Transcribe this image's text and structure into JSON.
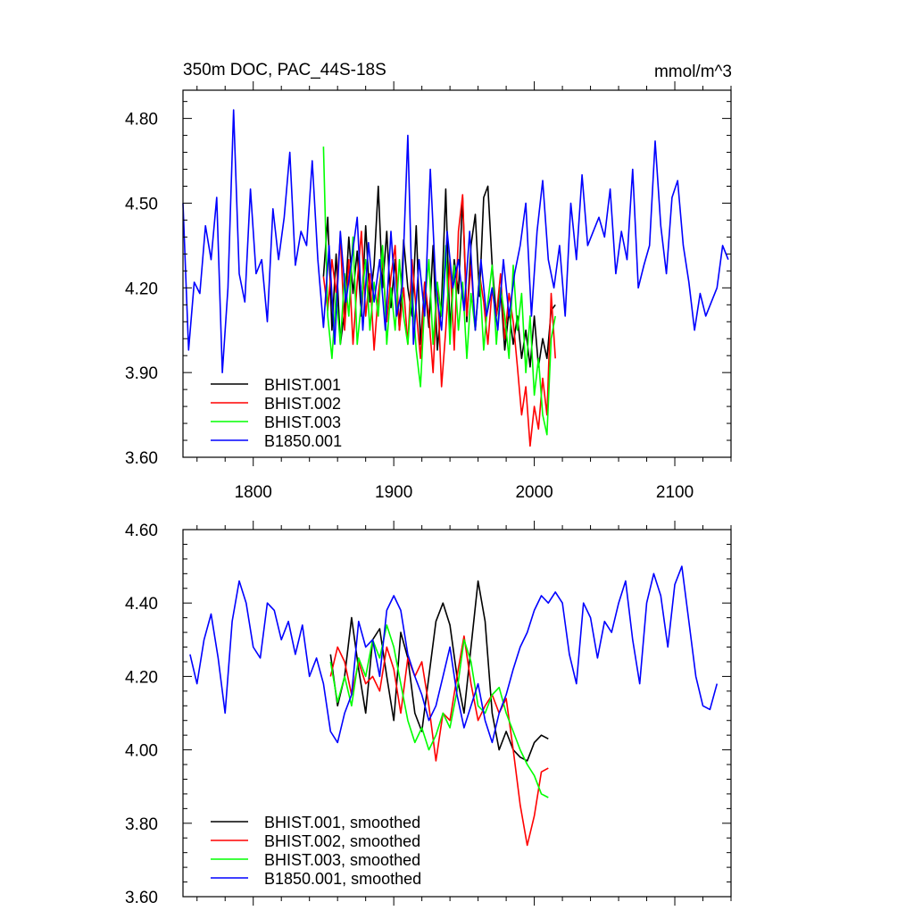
{
  "chart_data": [
    {
      "type": "line",
      "title": "350m DOC, PAC_44S-18S",
      "units_label": "mmol/m^3",
      "xlim": [
        1750,
        2140
      ],
      "ylim": [
        3.6,
        4.9
      ],
      "xticks": [
        1800,
        1900,
        2000,
        2100
      ],
      "xtick_labels": [
        "1800",
        "1900",
        "2000",
        "2100"
      ],
      "yticks": [
        3.6,
        3.9,
        4.2,
        4.5,
        4.8
      ],
      "ytick_labels": [
        "3.60",
        "3.90",
        "4.20",
        "4.50",
        "4.80"
      ],
      "legend_position": "bottom-left",
      "series": [
        {
          "name": "BHIST.001",
          "color": "#000000",
          "x": [
            1850,
            1853,
            1856,
            1859,
            1862,
            1865,
            1868,
            1871,
            1874,
            1877,
            1880,
            1883,
            1886,
            1889,
            1892,
            1895,
            1898,
            1901,
            1904,
            1907,
            1910,
            1913,
            1916,
            1919,
            1922,
            1925,
            1928,
            1931,
            1934,
            1937,
            1940,
            1943,
            1946,
            1949,
            1952,
            1955,
            1958,
            1961,
            1964,
            1967,
            1970,
            1973,
            1976,
            1979,
            1982,
            1985,
            1988,
            1991,
            1994,
            1997,
            2000,
            2003,
            2006,
            2009,
            2012,
            2015
          ],
          "y": [
            4.24,
            4.45,
            4.05,
            4.32,
            4.0,
            4.12,
            4.38,
            4.18,
            4.33,
            4.1,
            4.42,
            4.15,
            4.28,
            4.56,
            4.2,
            4.4,
            4.13,
            4.3,
            4.05,
            4.37,
            4.2,
            4.1,
            4.42,
            4.0,
            4.22,
            4.06,
            4.35,
            3.98,
            4.15,
            4.55,
            4.05,
            4.3,
            4.18,
            4.52,
            4.08,
            4.35,
            4.46,
            4.17,
            4.52,
            4.56,
            4.28,
            4.1,
            4.2,
            3.98,
            4.12,
            4.0,
            4.1,
            3.95,
            4.05,
            3.92,
            4.1,
            3.92,
            4.02,
            3.95,
            4.12,
            4.14
          ]
        },
        {
          "name": "BHIST.002",
          "color": "#ff0000",
          "x": [
            1850,
            1853,
            1856,
            1859,
            1862,
            1865,
            1868,
            1871,
            1874,
            1877,
            1880,
            1883,
            1886,
            1889,
            1892,
            1895,
            1898,
            1901,
            1904,
            1907,
            1910,
            1913,
            1916,
            1919,
            1922,
            1925,
            1928,
            1931,
            1934,
            1937,
            1940,
            1943,
            1946,
            1949,
            1952,
            1955,
            1958,
            1961,
            1964,
            1967,
            1970,
            1973,
            1976,
            1979,
            1982,
            1985,
            1988,
            1991,
            1994,
            1997,
            2000,
            2003,
            2006,
            2009,
            2012,
            2015
          ],
          "y": [
            4.24,
            4.12,
            4.3,
            4.18,
            4.38,
            4.05,
            4.3,
            4.0,
            4.22,
            4.4,
            4.1,
            4.25,
            3.98,
            4.18,
            4.3,
            4.08,
            4.24,
            4.35,
            4.05,
            4.2,
            4.0,
            4.3,
            4.12,
            3.95,
            4.22,
            4.1,
            3.9,
            4.22,
            3.85,
            4.05,
            4.3,
            3.98,
            4.4,
            4.53,
            4.1,
            4.28,
            4.05,
            4.25,
            4.15,
            4.0,
            4.2,
            4.1,
            4.25,
            4.02,
            4.18,
            4.08,
            3.92,
            3.75,
            3.85,
            3.64,
            3.78,
            3.7,
            3.88,
            3.75,
            4.18,
            3.95
          ]
        },
        {
          "name": "BHIST.003",
          "color": "#00ff00",
          "x": [
            1850,
            1853,
            1856,
            1859,
            1862,
            1865,
            1868,
            1871,
            1874,
            1877,
            1880,
            1883,
            1886,
            1889,
            1892,
            1895,
            1898,
            1901,
            1904,
            1907,
            1910,
            1913,
            1916,
            1919,
            1922,
            1925,
            1928,
            1931,
            1934,
            1937,
            1940,
            1943,
            1946,
            1949,
            1952,
            1955,
            1958,
            1961,
            1964,
            1967,
            1970,
            1973,
            1976,
            1979,
            1982,
            1985,
            1988,
            1991,
            1994,
            1997,
            2000,
            2003,
            2006,
            2009,
            2012,
            2015
          ],
          "y": [
            4.7,
            4.1,
            3.95,
            4.18,
            4.0,
            4.25,
            4.1,
            4.38,
            4.0,
            4.15,
            4.3,
            4.05,
            4.22,
            4.1,
            4.35,
            4.0,
            4.2,
            4.05,
            4.3,
            4.1,
            4.0,
            4.2,
            3.98,
            3.85,
            4.15,
            4.3,
            4.0,
            4.22,
            4.1,
            4.35,
            4.0,
            4.28,
            4.05,
            4.22,
            3.95,
            4.18,
            4.05,
            4.25,
            3.98,
            4.15,
            4.28,
            4.0,
            4.2,
            4.1,
            3.95,
            4.28,
            4.05,
            4.18,
            3.9,
            4.1,
            3.82,
            3.95,
            3.75,
            3.68,
            4.02,
            4.1
          ]
        },
        {
          "name": "B1850.001",
          "color": "#0000ff",
          "x": [
            1750,
            1754,
            1758,
            1762,
            1766,
            1770,
            1774,
            1778,
            1782,
            1786,
            1790,
            1794,
            1798,
            1802,
            1806,
            1810,
            1814,
            1818,
            1822,
            1826,
            1830,
            1834,
            1838,
            1842,
            1846,
            1850,
            1854,
            1858,
            1862,
            1866,
            1870,
            1874,
            1878,
            1882,
            1886,
            1890,
            1894,
            1898,
            1902,
            1906,
            1910,
            1914,
            1918,
            1922,
            1926,
            1930,
            1934,
            1938,
            1942,
            1946,
            1950,
            1954,
            1958,
            1962,
            1966,
            1970,
            1974,
            1978,
            1982,
            1986,
            1990,
            1994,
            1998,
            2002,
            2006,
            2010,
            2014,
            2018,
            2022,
            2026,
            2030,
            2034,
            2038,
            2042,
            2046,
            2050,
            2054,
            2058,
            2062,
            2066,
            2070,
            2074,
            2078,
            2082,
            2086,
            2090,
            2094,
            2098,
            2102,
            2106,
            2110,
            2114,
            2118,
            2122,
            2126,
            2130,
            2134,
            2138
          ],
          "y": [
            4.5,
            3.98,
            4.22,
            4.18,
            4.42,
            4.3,
            4.52,
            3.9,
            4.2,
            4.83,
            4.25,
            4.15,
            4.55,
            4.25,
            4.3,
            4.08,
            4.48,
            4.3,
            4.45,
            4.68,
            4.28,
            4.4,
            4.35,
            4.65,
            4.3,
            4.06,
            4.35,
            4.0,
            4.4,
            4.15,
            4.3,
            4.45,
            4.05,
            4.36,
            4.15,
            4.3,
            4.05,
            4.4,
            4.1,
            4.2,
            4.74,
            4.0,
            4.3,
            4.1,
            4.62,
            4.2,
            4.05,
            4.4,
            4.2,
            4.3,
            4.12,
            4.4,
            4.05,
            4.3,
            4.1,
            4.2,
            4.05,
            4.3,
            4.1,
            4.25,
            4.35,
            4.5,
            4.1,
            4.4,
            4.58,
            4.3,
            4.2,
            4.35,
            4.1,
            4.5,
            4.3,
            4.6,
            4.35,
            4.4,
            4.45,
            4.38,
            4.55,
            4.25,
            4.4,
            4.3,
            4.62,
            4.2,
            4.28,
            4.35,
            4.72,
            4.42,
            4.25,
            4.52,
            4.58,
            4.35,
            4.22,
            4.05,
            4.18,
            4.1,
            4.15,
            4.2,
            4.35,
            4.3
          ]
        }
      ]
    },
    {
      "type": "line",
      "xlim": [
        1750,
        2140
      ],
      "ylim": [
        3.6,
        4.6
      ],
      "xticks": [
        1800,
        1900,
        2000,
        2100
      ],
      "yticks": [
        3.6,
        3.8,
        4.0,
        4.2,
        4.4,
        4.6
      ],
      "ytick_labels": [
        "3.60",
        "3.80",
        "4.00",
        "4.20",
        "4.40",
        "4.60"
      ],
      "legend_position": "bottom-left",
      "series": [
        {
          "name": "BHIST.001, smoothed",
          "color": "#000000",
          "x": [
            1855,
            1860,
            1865,
            1870,
            1875,
            1880,
            1885,
            1890,
            1895,
            1900,
            1905,
            1910,
            1915,
            1920,
            1925,
            1930,
            1935,
            1940,
            1945,
            1950,
            1955,
            1960,
            1965,
            1970,
            1975,
            1980,
            1985,
            1990,
            1995,
            2000,
            2005,
            2010
          ],
          "y": [
            4.26,
            4.12,
            4.2,
            4.36,
            4.22,
            4.1,
            4.3,
            4.33,
            4.2,
            4.08,
            4.32,
            4.25,
            4.1,
            4.05,
            4.2,
            4.35,
            4.4,
            4.34,
            4.2,
            4.1,
            4.28,
            4.46,
            4.35,
            4.1,
            4.0,
            4.05,
            4.0,
            3.98,
            3.97,
            4.02,
            4.04,
            4.03
          ]
        },
        {
          "name": "BHIST.002, smoothed",
          "color": "#ff0000",
          "x": [
            1855,
            1860,
            1865,
            1870,
            1875,
            1880,
            1885,
            1890,
            1895,
            1900,
            1905,
            1910,
            1915,
            1920,
            1925,
            1930,
            1935,
            1940,
            1945,
            1950,
            1955,
            1960,
            1965,
            1970,
            1975,
            1980,
            1985,
            1990,
            1995,
            2000,
            2005,
            2010
          ],
          "y": [
            4.2,
            4.28,
            4.24,
            4.15,
            4.24,
            4.18,
            4.2,
            4.16,
            4.28,
            4.22,
            4.1,
            4.25,
            4.2,
            4.24,
            4.12,
            3.97,
            4.1,
            4.08,
            4.2,
            4.31,
            4.18,
            4.08,
            4.12,
            4.15,
            4.1,
            4.14,
            4.0,
            3.85,
            3.74,
            3.82,
            3.94,
            3.95
          ]
        },
        {
          "name": "BHIST.003, smoothed",
          "color": "#00ff00",
          "x": [
            1855,
            1860,
            1865,
            1870,
            1875,
            1880,
            1885,
            1890,
            1895,
            1900,
            1905,
            1910,
            1915,
            1920,
            1925,
            1930,
            1935,
            1940,
            1945,
            1950,
            1955,
            1960,
            1965,
            1970,
            1975,
            1980,
            1985,
            1990,
            1995,
            2000,
            2005,
            2010
          ],
          "y": [
            4.24,
            4.13,
            4.2,
            4.12,
            4.25,
            4.2,
            4.3,
            4.25,
            4.34,
            4.28,
            4.18,
            4.08,
            4.02,
            4.06,
            4.0,
            4.04,
            4.1,
            4.06,
            4.16,
            4.3,
            4.24,
            4.12,
            4.1,
            4.15,
            4.17,
            4.1,
            4.05,
            4.0,
            3.96,
            3.93,
            3.88,
            3.87
          ]
        },
        {
          "name": "B1850.001, smoothed",
          "color": "#0000ff",
          "x": [
            1755,
            1760,
            1765,
            1770,
            1775,
            1780,
            1785,
            1790,
            1795,
            1800,
            1805,
            1810,
            1815,
            1820,
            1825,
            1830,
            1835,
            1840,
            1845,
            1850,
            1855,
            1860,
            1865,
            1870,
            1875,
            1880,
            1885,
            1890,
            1895,
            1900,
            1905,
            1910,
            1915,
            1920,
            1925,
            1930,
            1935,
            1940,
            1945,
            1950,
            1955,
            1960,
            1965,
            1970,
            1975,
            1980,
            1985,
            1990,
            1995,
            2000,
            2005,
            2010,
            2015,
            2020,
            2025,
            2030,
            2035,
            2040,
            2045,
            2050,
            2055,
            2060,
            2065,
            2070,
            2075,
            2080,
            2085,
            2090,
            2095,
            2100,
            2105,
            2110,
            2115,
            2120,
            2125,
            2130
          ],
          "y": [
            4.26,
            4.18,
            4.3,
            4.37,
            4.25,
            4.1,
            4.35,
            4.46,
            4.4,
            4.28,
            4.25,
            4.4,
            4.38,
            4.3,
            4.35,
            4.26,
            4.34,
            4.2,
            4.25,
            4.18,
            4.05,
            4.02,
            4.1,
            4.15,
            4.35,
            4.28,
            4.3,
            4.2,
            4.38,
            4.42,
            4.38,
            4.26,
            4.2,
            4.15,
            4.08,
            4.12,
            4.2,
            4.28,
            4.15,
            4.06,
            4.12,
            4.18,
            4.08,
            4.02,
            4.1,
            4.15,
            4.22,
            4.28,
            4.32,
            4.38,
            4.42,
            4.4,
            4.43,
            4.4,
            4.26,
            4.18,
            4.4,
            4.36,
            4.25,
            4.35,
            4.32,
            4.4,
            4.46,
            4.3,
            4.18,
            4.4,
            4.48,
            4.42,
            4.28,
            4.45,
            4.5,
            4.35,
            4.2,
            4.12,
            4.11,
            4.18
          ]
        }
      ]
    }
  ]
}
